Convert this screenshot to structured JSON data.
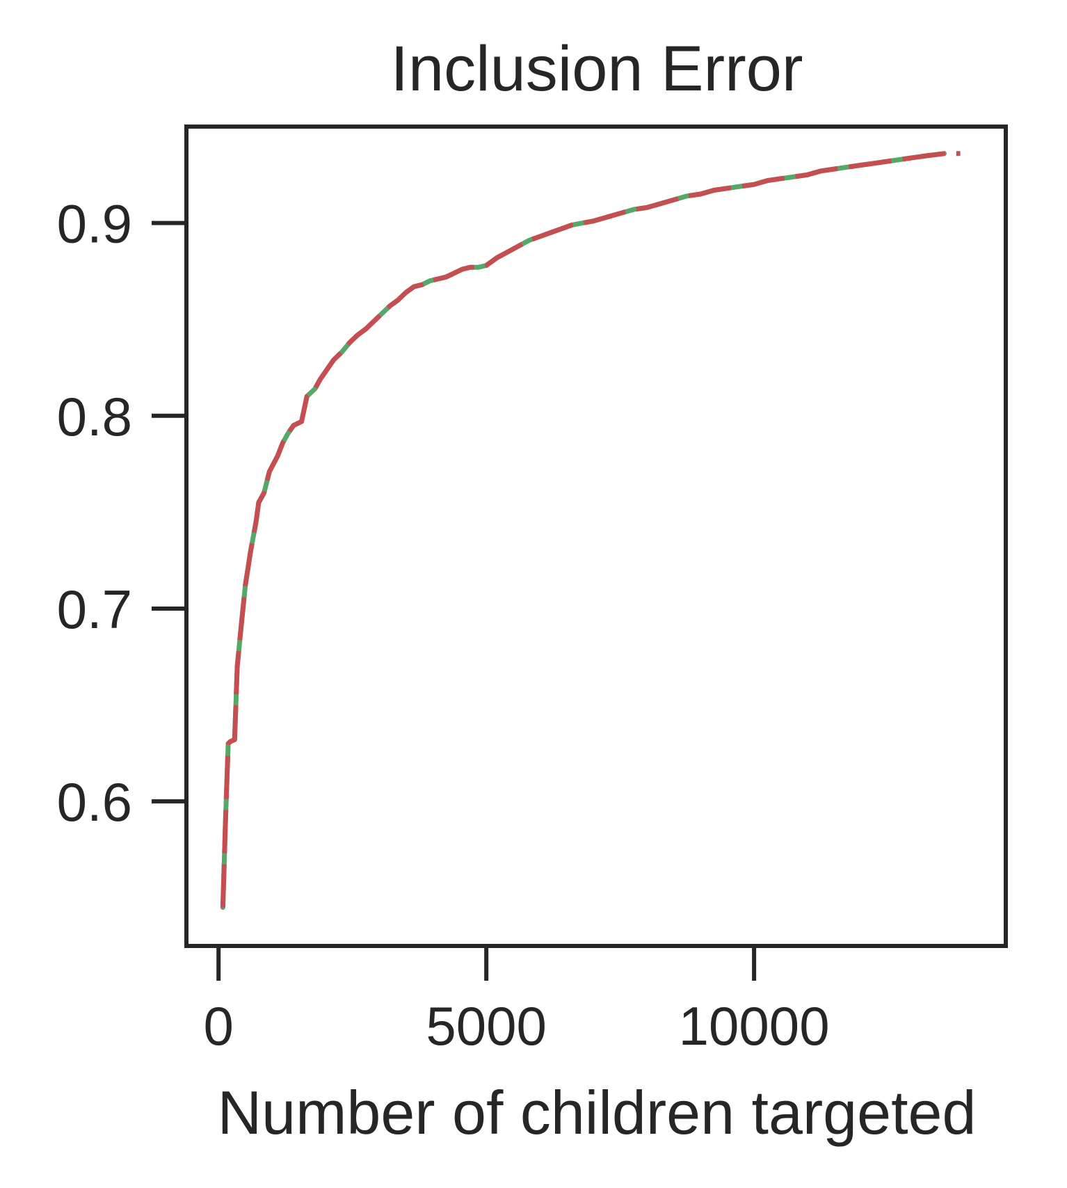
{
  "chart_data": {
    "type": "line",
    "title": "Inclusion Error",
    "xlabel": "Number of children targeted",
    "ylabel": "",
    "xlim": [
      -600,
      14700
    ],
    "ylim": [
      0.525,
      0.95
    ],
    "xticks": [
      0,
      5000,
      10000
    ],
    "xtick_labels": [
      "0",
      "5000",
      "10000"
    ],
    "yticks": [
      0.6,
      0.7,
      0.8,
      0.9
    ],
    "ytick_labels": [
      "0.6",
      "0.7",
      "0.8",
      "0.9"
    ],
    "grid": false,
    "legend": "none",
    "series": [
      {
        "color": "#55a868",
        "style": "solid",
        "x": [
          80,
          130,
          180,
          220,
          300,
          350,
          420,
          500,
          600,
          700,
          750,
          850,
          950,
          1100,
          1200,
          1300,
          1400,
          1550,
          1650,
          1800,
          1900,
          2000,
          2150,
          2300,
          2450,
          2600,
          2750,
          2900,
          3050,
          3200,
          3350,
          3500,
          3650,
          3800,
          3950,
          4100,
          4250,
          4400,
          4550,
          4700,
          4850,
          5000,
          5200,
          5400,
          5600,
          5800,
          6000,
          6200,
          6400,
          6600,
          6800,
          7000,
          7250,
          7500,
          7750,
          8000,
          8250,
          8500,
          8750,
          9000,
          9250,
          9500,
          9750,
          10000,
          10250,
          10500,
          10750,
          11000,
          11250,
          11500,
          11750,
          12000,
          12250,
          12500,
          12750,
          13000,
          13250,
          13550
        ],
        "y": [
          0.545,
          0.59,
          0.63,
          0.631,
          0.632,
          0.67,
          0.69,
          0.712,
          0.73,
          0.745,
          0.755,
          0.76,
          0.771,
          0.779,
          0.786,
          0.791,
          0.795,
          0.797,
          0.81,
          0.814,
          0.819,
          0.823,
          0.829,
          0.833,
          0.838,
          0.842,
          0.845,
          0.849,
          0.853,
          0.857,
          0.86,
          0.864,
          0.867,
          0.868,
          0.87,
          0.871,
          0.872,
          0.874,
          0.876,
          0.877,
          0.877,
          0.878,
          0.882,
          0.885,
          0.888,
          0.891,
          0.893,
          0.895,
          0.897,
          0.899,
          0.9,
          0.901,
          0.903,
          0.905,
          0.907,
          0.908,
          0.91,
          0.912,
          0.914,
          0.915,
          0.917,
          0.918,
          0.919,
          0.92,
          0.922,
          0.923,
          0.924,
          0.925,
          0.927,
          0.928,
          0.929,
          0.93,
          0.931,
          0.932,
          0.933,
          0.934,
          0.935,
          0.936
        ]
      },
      {
        "color": "#c44e52",
        "style": "dashed",
        "x": [
          80,
          130,
          180,
          220,
          300,
          350,
          420,
          500,
          600,
          700,
          750,
          850,
          950,
          1100,
          1200,
          1300,
          1400,
          1550,
          1650,
          1800,
          1900,
          2000,
          2150,
          2300,
          2450,
          2600,
          2750,
          2900,
          3050,
          3200,
          3350,
          3500,
          3650,
          3800,
          3950,
          4100,
          4250,
          4400,
          4550,
          4700,
          4850,
          5000,
          5200,
          5400,
          5600,
          5800,
          6000,
          6200,
          6400,
          6600,
          6800,
          7000,
          7250,
          7500,
          7750,
          8000,
          8250,
          8500,
          8750,
          9000,
          9250,
          9500,
          9750,
          10000,
          10250,
          10500,
          10750,
          11000,
          11250,
          11500,
          11750,
          12000,
          12250,
          12500,
          12750,
          13000,
          13250,
          13550,
          13850
        ],
        "y": [
          0.545,
          0.59,
          0.63,
          0.631,
          0.632,
          0.67,
          0.69,
          0.712,
          0.73,
          0.745,
          0.755,
          0.76,
          0.771,
          0.779,
          0.786,
          0.791,
          0.795,
          0.797,
          0.81,
          0.814,
          0.819,
          0.823,
          0.829,
          0.833,
          0.838,
          0.842,
          0.845,
          0.849,
          0.853,
          0.857,
          0.86,
          0.864,
          0.867,
          0.868,
          0.87,
          0.871,
          0.872,
          0.874,
          0.876,
          0.877,
          0.877,
          0.878,
          0.882,
          0.885,
          0.888,
          0.891,
          0.893,
          0.895,
          0.897,
          0.899,
          0.9,
          0.901,
          0.903,
          0.905,
          0.907,
          0.908,
          0.91,
          0.912,
          0.914,
          0.915,
          0.917,
          0.918,
          0.919,
          0.92,
          0.922,
          0.923,
          0.924,
          0.925,
          0.927,
          0.928,
          0.929,
          0.93,
          0.931,
          0.932,
          0.933,
          0.934,
          0.935,
          0.936,
          0.936
        ]
      }
    ]
  }
}
